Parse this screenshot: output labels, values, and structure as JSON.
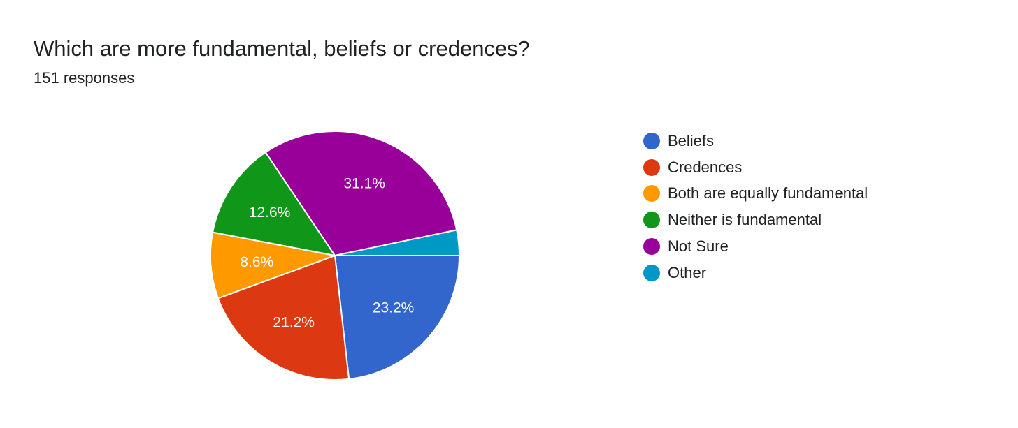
{
  "question": {
    "title": "Which are more fundamental, beliefs or credences?",
    "responses": "151 responses"
  },
  "chart_data": {
    "type": "pie",
    "title": "Which are more fundamental, beliefs or credences?",
    "subtitle": "151 responses",
    "legend_position": "right",
    "start_angle": "3 o'clock",
    "direction": "clockwise",
    "slices": [
      {
        "name": "Beliefs",
        "value": 23.2,
        "label": "23.2%",
        "color": "#3366cc"
      },
      {
        "name": "Credences",
        "value": 21.2,
        "label": "21.2%",
        "color": "#dc3912"
      },
      {
        "name": "Both are equally fundamental",
        "value": 8.6,
        "label": "8.6%",
        "color": "#ff9900"
      },
      {
        "name": "Neither is fundamental",
        "value": 12.6,
        "label": "12.6%",
        "color": "#109618"
      },
      {
        "name": "Not Sure",
        "value": 31.1,
        "label": "31.1%",
        "color": "#990099"
      },
      {
        "name": "Other",
        "value": 3.3,
        "label": "",
        "color": "#0099c6"
      }
    ]
  }
}
